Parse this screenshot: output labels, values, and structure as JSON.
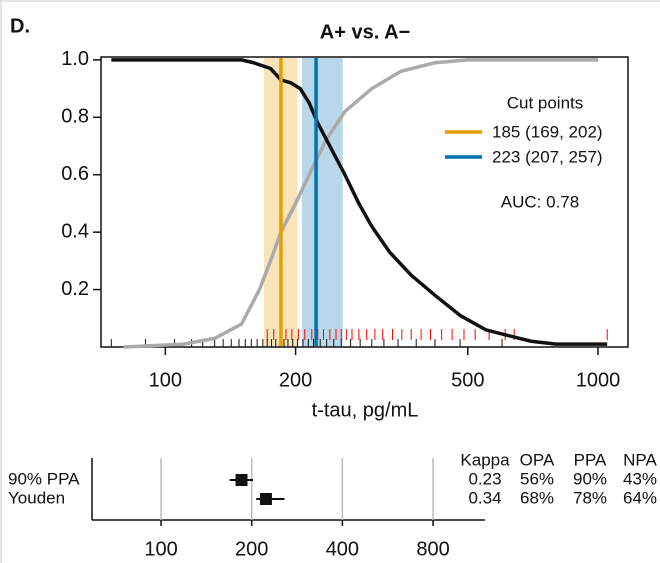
{
  "chart_data": [
    {
      "type": "line",
      "panel": "D.",
      "title": "A+ vs. A−",
      "xlabel": "t-tau, pg/mL",
      "log_x": true,
      "xlim": [
        71,
        1173
      ],
      "xticks": [
        100,
        200,
        500,
        1000
      ],
      "ylim": [
        0,
        1.01
      ],
      "yticks": [
        0.2,
        0.4,
        0.6,
        0.8,
        {
          "value": 1.0,
          "label": "1.0"
        }
      ],
      "series": [
        {
          "color": "#aaaaaa",
          "x": [
            80,
            110,
            130,
            150,
            165,
            175,
            185,
            200,
            215,
            235,
            260,
            300,
            350,
            420,
            500,
            1000
          ],
          "values": [
            0.0,
            0.01,
            0.03,
            0.08,
            0.2,
            0.3,
            0.4,
            0.5,
            0.6,
            0.72,
            0.82,
            0.9,
            0.96,
            0.99,
            1.0,
            1.0
          ]
        },
        {
          "color": "#111111",
          "x": [
            75,
            150,
            160,
            175,
            185,
            195,
            205,
            215,
            225,
            240,
            260,
            280,
            300,
            330,
            370,
            420,
            480,
            550,
            620,
            700,
            800,
            1050
          ],
          "values": [
            1.0,
            1.0,
            0.99,
            0.97,
            0.93,
            0.92,
            0.9,
            0.85,
            0.78,
            0.7,
            0.6,
            0.5,
            0.42,
            0.33,
            0.25,
            0.18,
            0.11,
            0.06,
            0.04,
            0.02,
            0.01,
            0.01
          ]
        }
      ],
      "cut_points": {
        "title": "Cut points",
        "items": [
          {
            "label": "185 (169, 202)",
            "value": 185,
            "low": 169,
            "high": 202,
            "color": "#e69f00"
          },
          {
            "label": "223 (207, 257)",
            "value": 223,
            "low": 207,
            "high": 257,
            "color": "#0072b2"
          }
        ]
      },
      "annotation": "AUC: 0.78",
      "rugs": [
        {
          "color": "#ff0000",
          "values": [
            172,
            178,
            185,
            190,
            196,
            203,
            210,
            218,
            225,
            232,
            240,
            248,
            255,
            262,
            270,
            280,
            292,
            305,
            318,
            335,
            352,
            370,
            390,
            410,
            435,
            460,
            490,
            520,
            560,
            610,
            640,
            1050
          ]
        },
        {
          "color": "#111111",
          "values": [
            75,
            90,
            105,
            115,
            122,
            130,
            136,
            142,
            148,
            153,
            158,
            163,
            168,
            172,
            176,
            180,
            184,
            188,
            192,
            197,
            202,
            208,
            214,
            220,
            228,
            236,
            245,
            255,
            268,
            282,
            300,
            320,
            345,
            380,
            420,
            480,
            600
          ]
        }
      ]
    },
    {
      "type": "forest",
      "log_x": true,
      "xlim": [
        59,
        1190
      ],
      "xticks": [
        100,
        200,
        400,
        800
      ],
      "grid": true,
      "color": "#111111",
      "categories": [
        "90% PPA",
        "Youden"
      ],
      "values": [
        185,
        223
      ],
      "low": [
        169,
        207
      ],
      "high": [
        202,
        257
      ],
      "table": {
        "columns": [
          "Kappa",
          "OPA",
          "PPA",
          "NPA"
        ],
        "rows": [
          [
            "0.23",
            "56%",
            "90%",
            "43%"
          ],
          [
            "0.34",
            "68%",
            "78%",
            "64%"
          ]
        ]
      }
    }
  ]
}
